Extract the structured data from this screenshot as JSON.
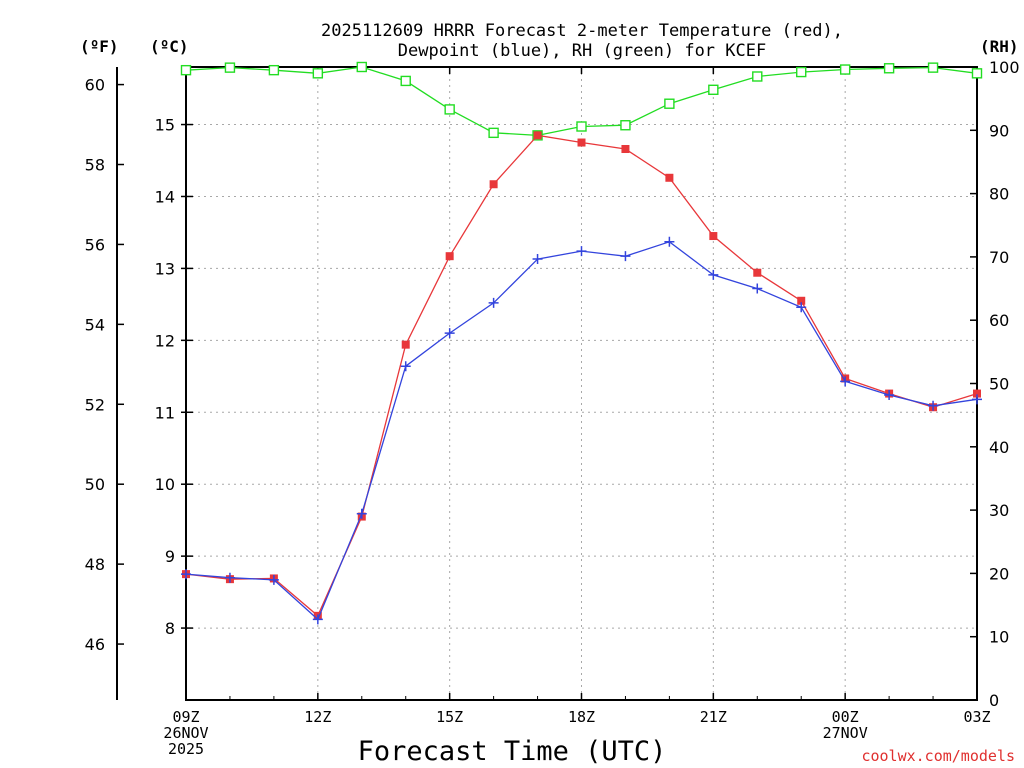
{
  "chart_data": {
    "type": "line",
    "title_line1": "2025112609 HRRR Forecast 2-meter Temperature (red),",
    "title_line2": "Dewpoint (blue), RH (green) for KCEF",
    "xlabel": "Forecast Time (UTC)",
    "credit": "coolwx.com/models",
    "unit_f": "(ºF)",
    "unit_c": "(ºC)",
    "unit_rh": "(RH)",
    "x_ticks": [
      {
        "hour": 0,
        "lines": [
          "09Z",
          "26NOV",
          "2025"
        ]
      },
      {
        "hour": 3,
        "lines": [
          "12Z"
        ]
      },
      {
        "hour": 6,
        "lines": [
          "15Z"
        ]
      },
      {
        "hour": 9,
        "lines": [
          "18Z"
        ]
      },
      {
        "hour": 12,
        "lines": [
          "21Z"
        ]
      },
      {
        "hour": 15,
        "lines": [
          "00Z",
          "27NOV"
        ]
      },
      {
        "hour": 18,
        "lines": [
          "03Z"
        ]
      }
    ],
    "xlim": [
      0,
      18
    ],
    "celsius_axis": {
      "range": [
        7.0,
        15.8
      ],
      "ticks": [
        "8",
        "9",
        "10",
        "11",
        "12",
        "13",
        "14",
        "15"
      ]
    },
    "fahrenheit_axis": {
      "ticks": [
        "46",
        "48",
        "50",
        "52",
        "54",
        "56",
        "58",
        "60"
      ]
    },
    "rh_axis": {
      "range": [
        0,
        100
      ],
      "ticks": [
        "0",
        "10",
        "20",
        "30",
        "40",
        "50",
        "60",
        "70",
        "80",
        "90",
        "100"
      ]
    },
    "series": [
      {
        "name": "Temperature",
        "axis": "celsius",
        "color": "#e8373a",
        "marker": "filled-square",
        "values": [
          8.75,
          8.68,
          8.69,
          8.17,
          9.55,
          11.94,
          13.17,
          14.17,
          14.85,
          14.75,
          14.66,
          14.26,
          13.45,
          12.94,
          12.55,
          11.47,
          11.26,
          11.07,
          11.26
        ]
      },
      {
        "name": "Dewpoint",
        "axis": "celsius",
        "color": "#3344dd",
        "marker": "plus",
        "values": [
          8.75,
          8.7,
          8.67,
          8.12,
          9.59,
          11.64,
          12.1,
          12.52,
          13.13,
          13.24,
          13.17,
          13.37,
          12.91,
          12.72,
          12.46,
          11.43,
          11.24,
          11.09,
          11.18
        ]
      },
      {
        "name": "RH",
        "axis": "rh",
        "color": "#22dd22",
        "marker": "open-square",
        "values": [
          99.5,
          99.9,
          99.5,
          99.0,
          100.0,
          97.8,
          93.3,
          89.6,
          89.2,
          90.6,
          90.8,
          94.2,
          96.4,
          98.5,
          99.2,
          99.6,
          99.8,
          99.9,
          99.0
        ]
      }
    ]
  }
}
